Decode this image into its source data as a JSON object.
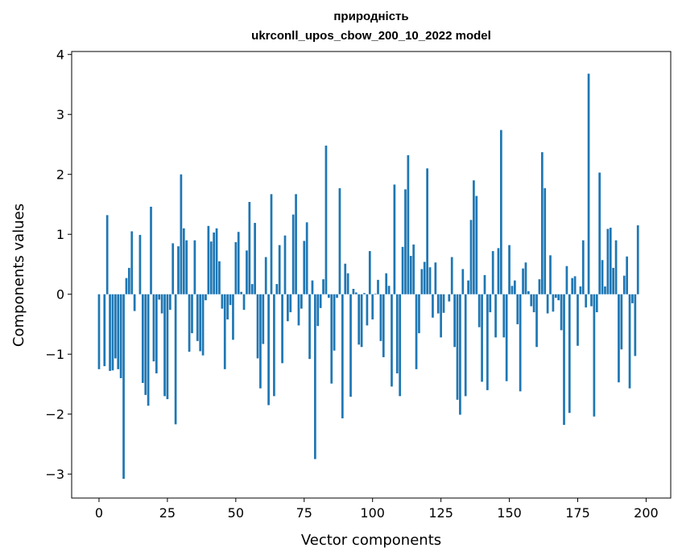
{
  "chart_data": {
    "type": "bar",
    "title_line1": "природність",
    "title_line2": "ukrconll_upos_cbow_200_10_2022 model",
    "xlabel": "Vector components",
    "ylabel": "Components values",
    "xlim": [
      -10,
      209
    ],
    "ylim": [
      -3.4,
      4.05
    ],
    "x_ticks": [
      0,
      25,
      50,
      75,
      100,
      125,
      150,
      175,
      200
    ],
    "y_ticks": [
      4,
      3,
      2,
      1,
      0,
      -1,
      -2,
      -3
    ],
    "y_tick_labels": [
      "4",
      "3",
      "2",
      "1",
      "0",
      "−1",
      "−2",
      "−3"
    ],
    "bar_color": "#1f77b4",
    "values": [
      -1.25,
      0.0,
      -1.2,
      1.32,
      -1.28,
      -1.27,
      -1.07,
      -1.25,
      -1.4,
      -3.08,
      0.27,
      0.44,
      1.05,
      -0.28,
      0.0,
      0.99,
      -1.48,
      -1.68,
      -1.86,
      1.46,
      -1.12,
      -1.32,
      -0.09,
      -0.32,
      -1.7,
      -1.75,
      -0.26,
      0.85,
      -2.17,
      0.8,
      2.0,
      1.1,
      0.9,
      -0.96,
      -0.65,
      0.9,
      -0.78,
      -0.95,
      -1.02,
      -0.1,
      1.14,
      0.88,
      1.03,
      1.1,
      0.55,
      -0.24,
      -1.25,
      -0.42,
      -0.18,
      -0.76,
      0.87,
      1.04,
      0.04,
      -0.26,
      0.73,
      1.54,
      0.17,
      1.19,
      -1.07,
      -1.57,
      -0.83,
      0.62,
      -1.85,
      1.67,
      -1.7,
      0.17,
      0.82,
      -1.15,
      0.98,
      -0.45,
      -0.3,
      1.33,
      1.67,
      -0.52,
      -0.24,
      0.89,
      1.2,
      -1.08,
      0.23,
      -2.75,
      -0.53,
      -0.23,
      0.25,
      2.48,
      -0.06,
      -1.49,
      -0.94,
      -0.06,
      1.77,
      -2.07,
      0.51,
      0.35,
      -1.71,
      0.09,
      0.03,
      -0.84,
      -0.88,
      0.02,
      -0.52,
      0.72,
      -0.42,
      0.01,
      0.24,
      -0.78,
      -1.05,
      0.35,
      0.14,
      -1.54,
      1.83,
      -1.32,
      -1.7,
      0.79,
      1.75,
      2.32,
      0.64,
      0.83,
      -1.25,
      -0.65,
      0.42,
      0.54,
      2.1,
      0.45,
      -0.39,
      0.53,
      -0.32,
      -0.72,
      -0.31,
      0.0,
      -0.12,
      0.62,
      -0.88,
      -1.76,
      -2.01,
      0.42,
      -1.7,
      0.23,
      1.24,
      1.9,
      1.64,
      -0.55,
      -1.46,
      0.32,
      -1.6,
      -0.3,
      0.72,
      -0.72,
      0.77,
      2.74,
      -0.72,
      -1.45,
      0.82,
      0.14,
      0.23,
      -0.5,
      -1.62,
      0.43,
      0.53,
      0.05,
      -0.2,
      -0.3,
      -0.88,
      0.25,
      2.37,
      1.77,
      -0.32,
      0.65,
      -0.29,
      -0.06,
      -0.1,
      -0.6,
      -2.18,
      0.47,
      -1.98,
      0.27,
      0.3,
      -0.86,
      0.13,
      0.9,
      -0.22,
      3.68,
      -0.2,
      -2.04,
      -0.3,
      2.03,
      0.57,
      0.13,
      1.09,
      1.11,
      0.44,
      0.9,
      -1.47,
      -0.92,
      0.31,
      0.63,
      -1.57,
      -0.15,
      -1.03,
      1.15
    ]
  }
}
